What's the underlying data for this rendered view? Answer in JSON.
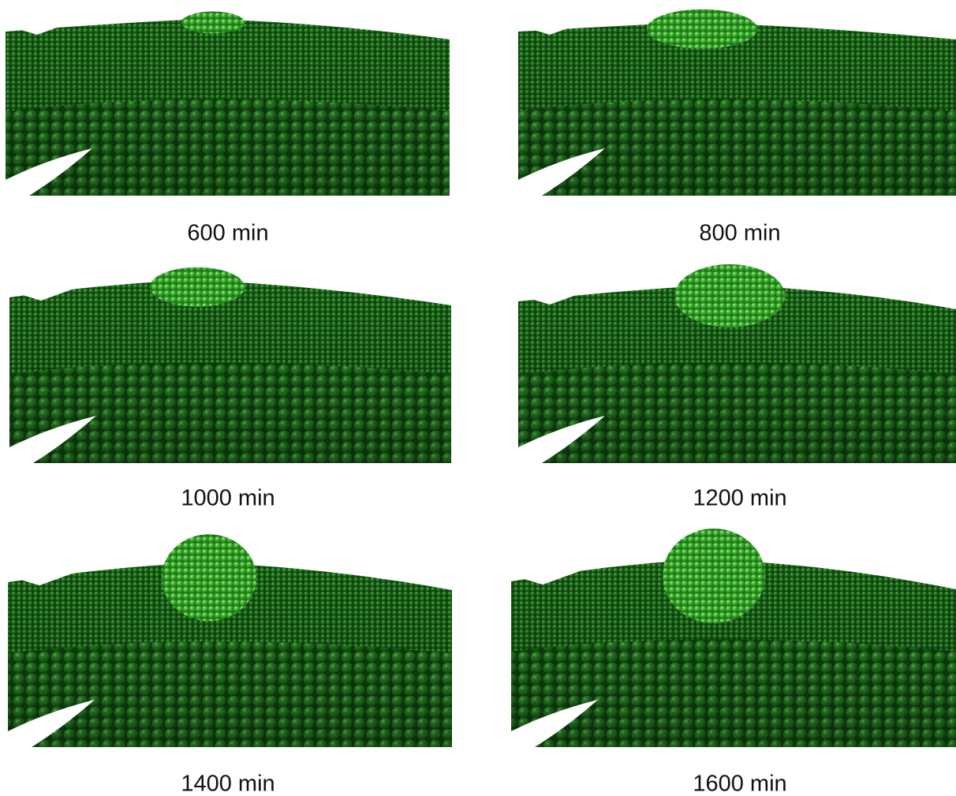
{
  "panels": [
    {
      "label": "600 min"
    },
    {
      "label": "800 min"
    },
    {
      "label": "1000 min"
    },
    {
      "label": "1200 min"
    },
    {
      "label": "1400 min"
    },
    {
      "label": "1600 min"
    }
  ]
}
